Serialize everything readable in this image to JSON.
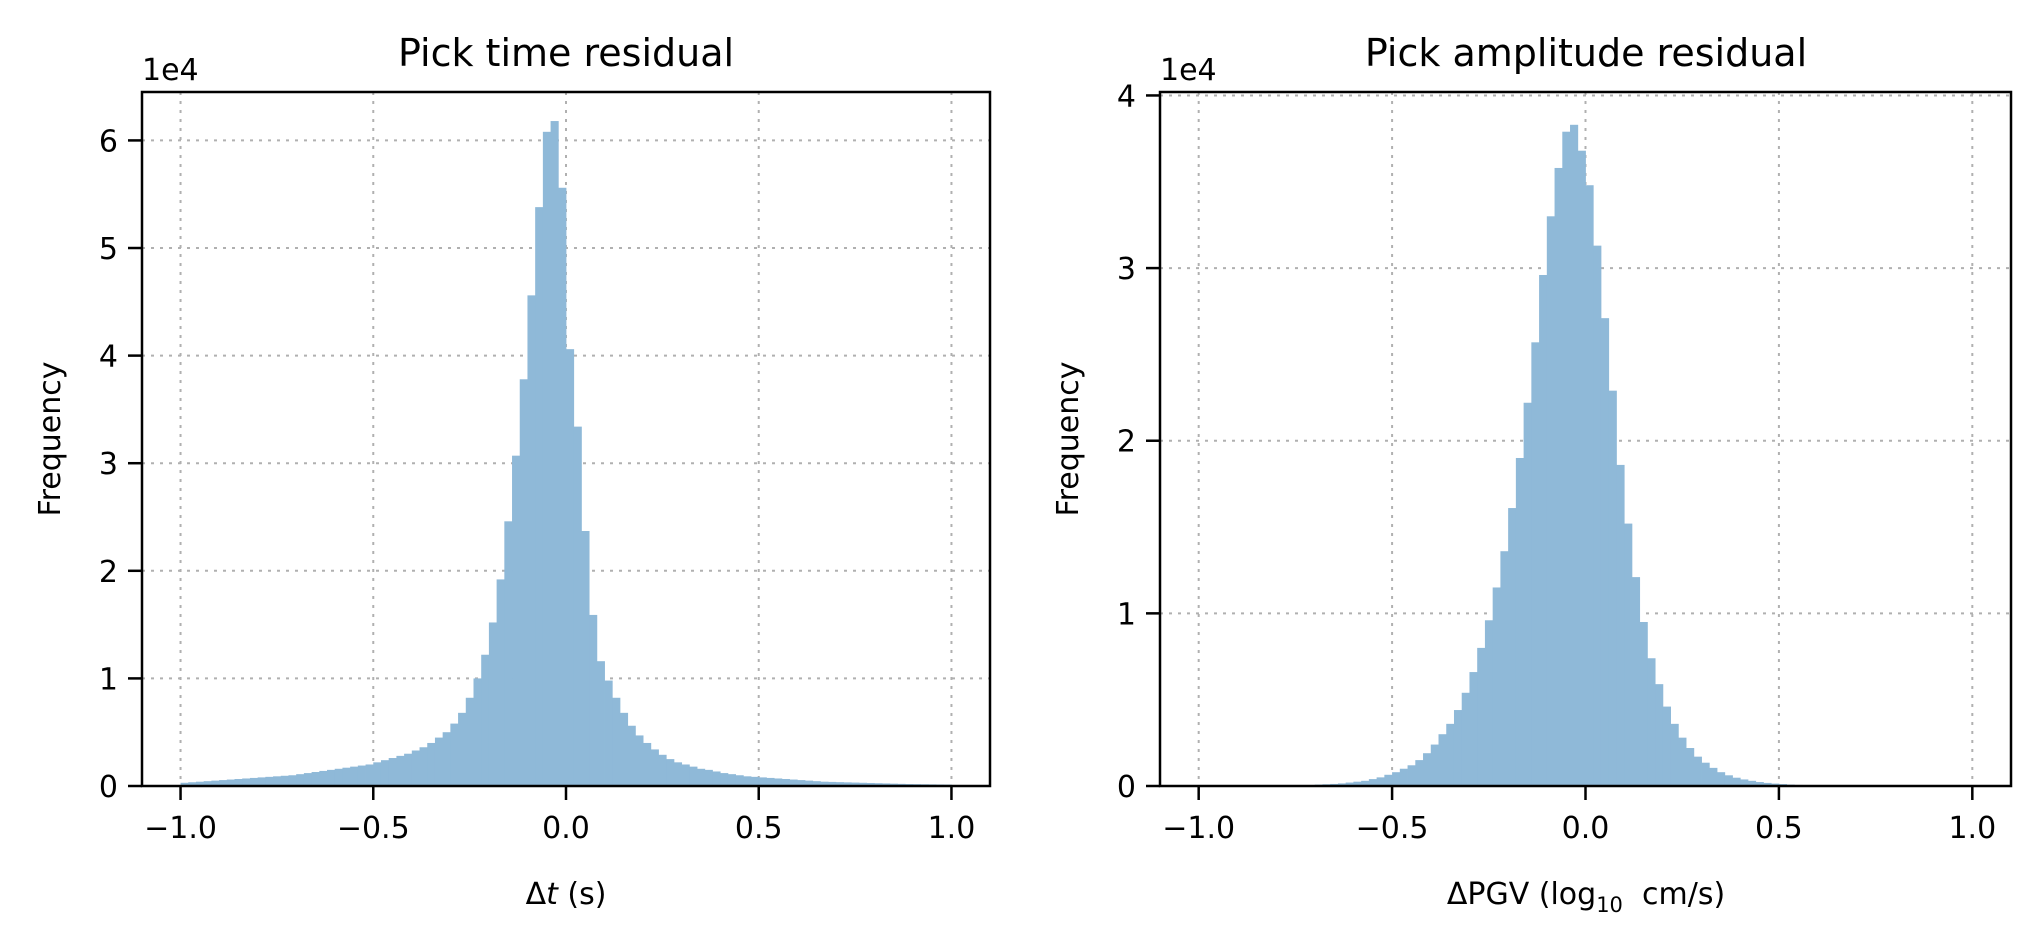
{
  "figure": {
    "bar_color": "#8fb9d8",
    "grid_color": "#b0b0b0",
    "axis_color": "#000000"
  },
  "chart_data": [
    {
      "type": "bar",
      "title": "Pick time residual",
      "xlabel": "Δt (s)",
      "xlabel_parts": {
        "prefix": "Δ",
        "italic": "t",
        "suffix": " (s)"
      },
      "ylabel": "Frequency",
      "offset_text": "1e4",
      "xlim": [
        -1.1,
        1.1
      ],
      "ylim": [
        0,
        6.45
      ],
      "y_scale": 10000,
      "xticks": [
        -1.0,
        -0.5,
        0.0,
        0.5,
        1.0
      ],
      "xtick_labels": [
        "−1.0",
        "−0.5",
        "0.0",
        "0.5",
        "1.0"
      ],
      "yticks": [
        0,
        1,
        2,
        3,
        4,
        5,
        6
      ],
      "ytick_labels": [
        "0",
        "1",
        "2",
        "3",
        "4",
        "5",
        "6"
      ],
      "grid": true,
      "grid_style": "dotted",
      "bin_start": -1.0,
      "bin_width": 0.02,
      "values": [
        0.03,
        0.035,
        0.04,
        0.045,
        0.05,
        0.055,
        0.06,
        0.065,
        0.07,
        0.075,
        0.08,
        0.085,
        0.09,
        0.095,
        0.1,
        0.11,
        0.12,
        0.13,
        0.14,
        0.15,
        0.16,
        0.17,
        0.18,
        0.19,
        0.2,
        0.22,
        0.24,
        0.26,
        0.28,
        0.3,
        0.33,
        0.36,
        0.4,
        0.45,
        0.5,
        0.58,
        0.68,
        0.82,
        1.0,
        1.22,
        1.52,
        1.92,
        2.46,
        3.07,
        3.78,
        4.56,
        5.38,
        6.08,
        6.18,
        5.56,
        4.06,
        3.34,
        2.37,
        1.59,
        1.16,
        0.98,
        0.82,
        0.68,
        0.56,
        0.47,
        0.4,
        0.34,
        0.29,
        0.25,
        0.22,
        0.2,
        0.18,
        0.16,
        0.15,
        0.135,
        0.12,
        0.11,
        0.1,
        0.09,
        0.085,
        0.08,
        0.075,
        0.07,
        0.065,
        0.06,
        0.055,
        0.05,
        0.045,
        0.04,
        0.038,
        0.036,
        0.034,
        0.032,
        0.03,
        0.028,
        0.026,
        0.024,
        0.022,
        0.02,
        0.018,
        0.017,
        0.016,
        0.015,
        0.014,
        0.013
      ]
    },
    {
      "type": "bar",
      "title": "Pick amplitude residual",
      "xlabel": "ΔPGV (log10 cm/s)",
      "xlabel_parts": {
        "prefix": "ΔPGV (log",
        "sub": "10",
        "suffix": "  cm/s)"
      },
      "ylabel": "Frequency",
      "offset_text": "1e4",
      "xlim": [
        -1.1,
        1.1
      ],
      "ylim": [
        0,
        4.02
      ],
      "y_scale": 10000,
      "xticks": [
        -1.0,
        -0.5,
        0.0,
        0.5,
        1.0
      ],
      "xtick_labels": [
        "−1.0",
        "−0.5",
        "0.0",
        "0.5",
        "1.0"
      ],
      "yticks": [
        0,
        1,
        2,
        3,
        4
      ],
      "ytick_labels": [
        "0",
        "1",
        "2",
        "3",
        "4"
      ],
      "grid": true,
      "grid_style": "dotted",
      "bin_start": -1.0,
      "bin_width": 0.02,
      "values": [
        0.0,
        0.0,
        0.0,
        0.0,
        0.0,
        0.0,
        0.0,
        0.0,
        0.0,
        0.0,
        0.0,
        0.0,
        0.0,
        0.0,
        0.005,
        0.008,
        0.01,
        0.012,
        0.015,
        0.02,
        0.025,
        0.03,
        0.04,
        0.05,
        0.065,
        0.08,
        0.1,
        0.12,
        0.15,
        0.19,
        0.24,
        0.3,
        0.36,
        0.44,
        0.54,
        0.66,
        0.8,
        0.96,
        1.15,
        1.36,
        1.61,
        1.9,
        2.22,
        2.57,
        2.96,
        3.3,
        3.58,
        3.79,
        3.83,
        3.68,
        3.48,
        3.13,
        2.71,
        2.29,
        1.86,
        1.52,
        1.21,
        0.95,
        0.74,
        0.59,
        0.46,
        0.36,
        0.28,
        0.22,
        0.17,
        0.135,
        0.105,
        0.08,
        0.062,
        0.048,
        0.038,
        0.03,
        0.023,
        0.018,
        0.014,
        0.011,
        0.008,
        0.006,
        0.005,
        0.004,
        0.003,
        0.002,
        0.0015,
        0.001,
        0.001,
        0.0,
        0.0,
        0.0,
        0.0,
        0.0,
        0.0,
        0.0,
        0.0,
        0.0,
        0.0,
        0.0,
        0.0,
        0.0,
        0.0,
        0.0
      ]
    }
  ]
}
